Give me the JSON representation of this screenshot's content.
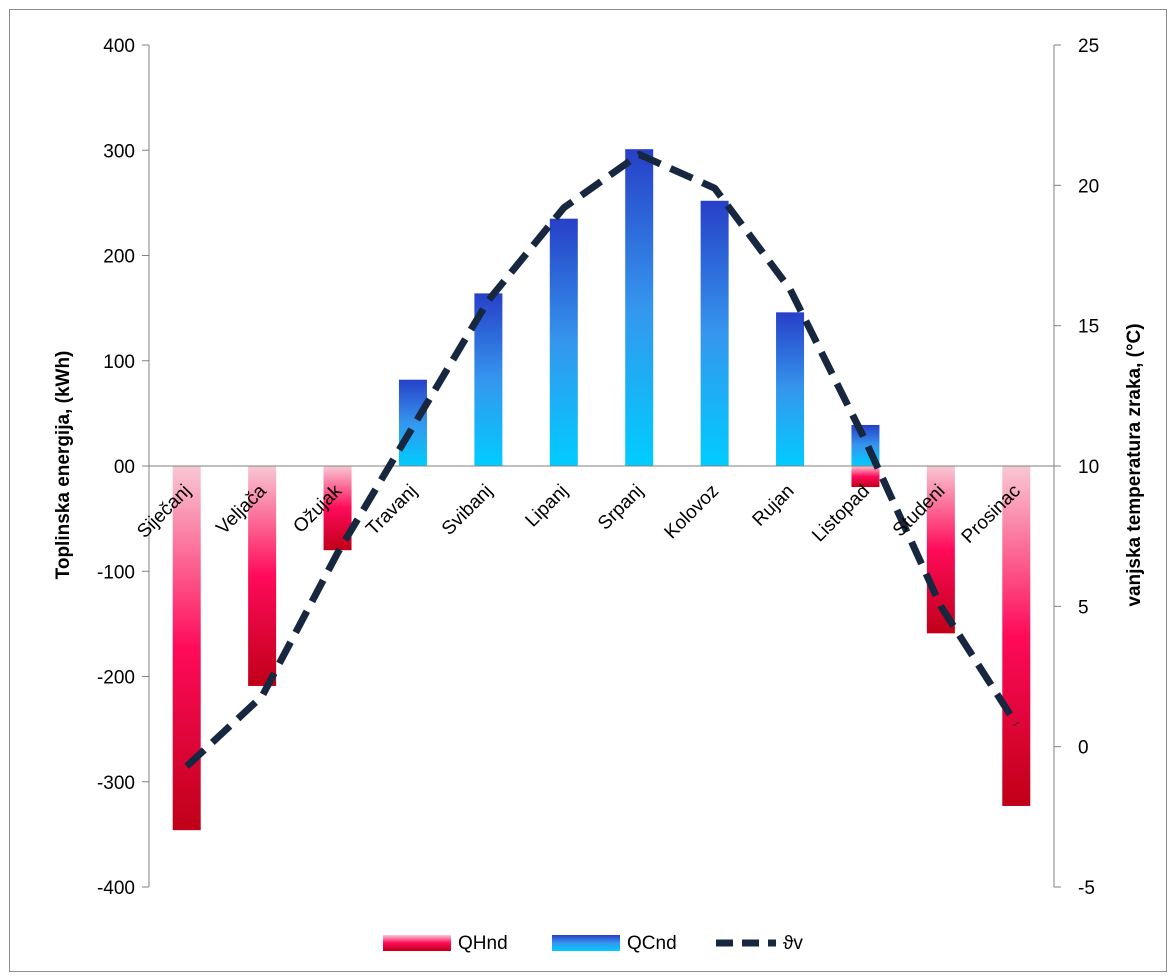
{
  "chart_data": {
    "type": "bar",
    "categories": [
      "Siječanj",
      "Veljača",
      "Ožujak",
      "Travanj",
      "Svibanj",
      "Lipanj",
      "Srpanj",
      "Kolovoz",
      "Rujan",
      "Listopad",
      "Studeni",
      "Prosinac"
    ],
    "series": [
      {
        "name": "QHnd",
        "axis": "left",
        "kind": "bar",
        "values": [
          -346,
          -209,
          -80,
          0,
          0,
          0,
          0,
          0,
          0,
          -20,
          -159,
          -323
        ]
      },
      {
        "name": "QCnd",
        "axis": "left",
        "kind": "bar",
        "values": [
          0,
          0,
          0,
          82,
          164,
          235,
          301,
          252,
          146,
          39,
          0,
          0
        ]
      },
      {
        "name": "ϑv",
        "axis": "right",
        "kind": "line",
        "style": "dashed",
        "values": [
          -0.7,
          1.8,
          6.9,
          11.4,
          15.9,
          19.2,
          21.1,
          19.9,
          16.3,
          10.9,
          5.0,
          0.8
        ]
      }
    ],
    "ylabel": "Toplinska energija, (kWh)",
    "y2label": "vanjska temperatura zraka, (°C)",
    "xlabel": "",
    "ylim": [
      -400,
      400
    ],
    "y2lim": [
      -5,
      25
    ],
    "yticks": [
      "400",
      "300",
      "200",
      "100",
      "00",
      "-100",
      "-200",
      "-300",
      "-400"
    ],
    "y2ticks": [
      "25",
      "20",
      "15",
      "10",
      "5",
      "0",
      "-5"
    ],
    "grid": false,
    "legend_position": "bottom",
    "colors": {
      "qhnd_top": "#f8c8d4",
      "qhnd_mid": "#ff0a5a",
      "qhnd_bottom": "#c00018",
      "qcnd_top": "#2740c8",
      "qcnd_mid": "#3596ee",
      "qcnd_bottom": "#00ccff",
      "line": "#17273f",
      "axis": "#808080"
    }
  }
}
